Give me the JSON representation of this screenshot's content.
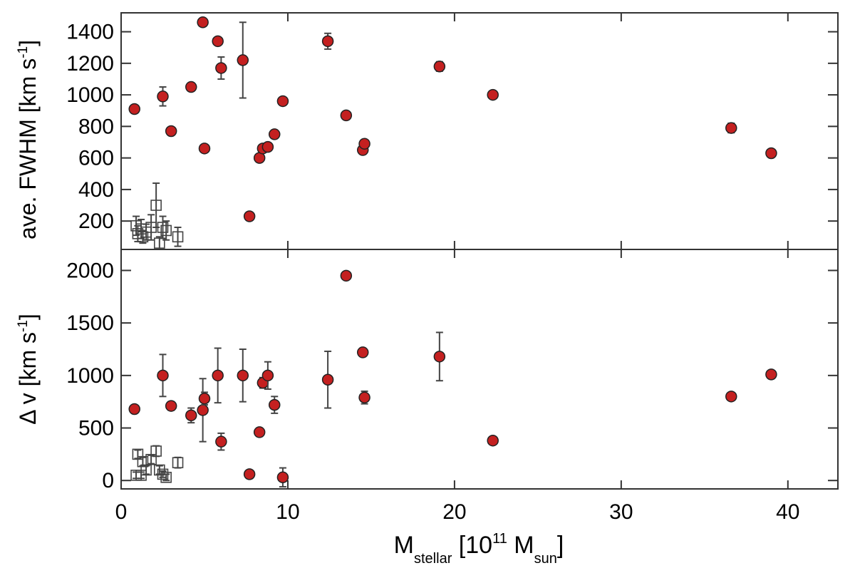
{
  "chart_data": {
    "type": "scatter",
    "x_axis": {
      "label_main": "M",
      "label_sub": "stellar",
      "label_mid": " [10",
      "label_sup": "11",
      "label_main2": " M",
      "label_sub2": "sun",
      "label_end": "]",
      "range": [
        0,
        43
      ],
      "ticks": [
        0,
        10,
        20,
        30,
        40
      ]
    },
    "panels": [
      {
        "id": "fwhm",
        "ylabel_main": "ave. FWHM [km s",
        "ylabel_sup": "-1",
        "ylabel_end": "]",
        "yrange": [
          20,
          1520
        ],
        "yticks": [
          200,
          400,
          600,
          800,
          1000,
          1200,
          1400
        ],
        "series": [
          {
            "marker": "filled-circle",
            "color": "#c42020",
            "points": [
              {
                "x": 0.8,
                "y": 910,
                "err": 0
              },
              {
                "x": 2.5,
                "y": 990,
                "err": 60
              },
              {
                "x": 3.0,
                "y": 770,
                "err": 0
              },
              {
                "x": 4.2,
                "y": 1050,
                "err": 0
              },
              {
                "x": 4.9,
                "y": 1460,
                "err": 0
              },
              {
                "x": 5.0,
                "y": 660,
                "err": 0
              },
              {
                "x": 5.8,
                "y": 1340,
                "err": 0
              },
              {
                "x": 6.0,
                "y": 1170,
                "err": 70
              },
              {
                "x": 7.3,
                "y": 1220,
                "err": 240
              },
              {
                "x": 7.7,
                "y": 230,
                "err": 0
              },
              {
                "x": 8.3,
                "y": 600,
                "err": 0
              },
              {
                "x": 8.5,
                "y": 660,
                "err": 0
              },
              {
                "x": 8.8,
                "y": 670,
                "err": 0
              },
              {
                "x": 9.2,
                "y": 750,
                "err": 0
              },
              {
                "x": 9.7,
                "y": 960,
                "err": 0
              },
              {
                "x": 12.4,
                "y": 1340,
                "err": 50
              },
              {
                "x": 13.5,
                "y": 870,
                "err": 0
              },
              {
                "x": 14.5,
                "y": 650,
                "err": 0
              },
              {
                "x": 14.6,
                "y": 690,
                "err": 0
              },
              {
                "x": 19.1,
                "y": 1180,
                "err": 30
              },
              {
                "x": 22.3,
                "y": 1000,
                "err": 0
              },
              {
                "x": 36.6,
                "y": 790,
                "err": 30
              },
              {
                "x": 39.0,
                "y": 630,
                "err": 0
              }
            ]
          },
          {
            "marker": "open-square",
            "color": "#444444",
            "points": [
              {
                "x": 0.9,
                "y": 170,
                "err": 60
              },
              {
                "x": 1.0,
                "y": 120,
                "err": 50
              },
              {
                "x": 1.2,
                "y": 150,
                "err": 60
              },
              {
                "x": 1.3,
                "y": 100,
                "err": 40
              },
              {
                "x": 1.5,
                "y": 130,
                "err": 50
              },
              {
                "x": 1.8,
                "y": 160,
                "err": 80
              },
              {
                "x": 2.1,
                "y": 300,
                "err": 140
              },
              {
                "x": 2.3,
                "y": 60,
                "err": 40
              },
              {
                "x": 2.5,
                "y": 160,
                "err": 70
              },
              {
                "x": 2.7,
                "y": 140,
                "err": 60
              },
              {
                "x": 3.4,
                "y": 100,
                "err": 60
              }
            ]
          }
        ]
      },
      {
        "id": "dv",
        "ylabel_main": "Δ v [km s",
        "ylabel_sup": "-1",
        "ylabel_end": "]",
        "yrange": [
          -80,
          2200
        ],
        "yticks": [
          0,
          500,
          1000,
          1500,
          2000
        ],
        "series": [
          {
            "marker": "filled-circle",
            "color": "#c42020",
            "points": [
              {
                "x": 0.8,
                "y": 680,
                "err": 0
              },
              {
                "x": 2.5,
                "y": 1000,
                "err": 200
              },
              {
                "x": 3.0,
                "y": 710,
                "err": 40
              },
              {
                "x": 4.2,
                "y": 620,
                "err": 70
              },
              {
                "x": 4.9,
                "y": 670,
                "err": 300
              },
              {
                "x": 5.0,
                "y": 780,
                "err": 60
              },
              {
                "x": 5.8,
                "y": 1000,
                "err": 260
              },
              {
                "x": 6.0,
                "y": 370,
                "err": 80
              },
              {
                "x": 7.3,
                "y": 1000,
                "err": 250
              },
              {
                "x": 7.7,
                "y": 60,
                "err": 0
              },
              {
                "x": 8.3,
                "y": 460,
                "err": 30
              },
              {
                "x": 8.5,
                "y": 930,
                "err": 50
              },
              {
                "x": 8.8,
                "y": 1000,
                "err": 130
              },
              {
                "x": 9.2,
                "y": 720,
                "err": 80
              },
              {
                "x": 9.7,
                "y": 30,
                "err": 90
              },
              {
                "x": 12.4,
                "y": 960,
                "err": 270
              },
              {
                "x": 13.5,
                "y": 1950,
                "err": 0
              },
              {
                "x": 14.5,
                "y": 1220,
                "err": 0
              },
              {
                "x": 14.6,
                "y": 790,
                "err": 60
              },
              {
                "x": 19.1,
                "y": 1180,
                "err": 230
              },
              {
                "x": 22.3,
                "y": 380,
                "err": 0
              },
              {
                "x": 36.6,
                "y": 800,
                "err": 0
              },
              {
                "x": 39.0,
                "y": 1010,
                "err": 0
              }
            ]
          },
          {
            "marker": "open-square",
            "color": "#444444",
            "points": [
              {
                "x": 0.9,
                "y": 50,
                "err": 30
              },
              {
                "x": 1.0,
                "y": 250,
                "err": 40
              },
              {
                "x": 1.2,
                "y": 50,
                "err": 30
              },
              {
                "x": 1.3,
                "y": 180,
                "err": 40
              },
              {
                "x": 1.5,
                "y": 100,
                "err": 40
              },
              {
                "x": 1.8,
                "y": 200,
                "err": 40
              },
              {
                "x": 2.1,
                "y": 280,
                "err": 50
              },
              {
                "x": 2.3,
                "y": 100,
                "err": 40
              },
              {
                "x": 2.5,
                "y": 60,
                "err": 30
              },
              {
                "x": 2.7,
                "y": 30,
                "err": 30
              },
              {
                "x": 3.4,
                "y": 170,
                "err": 50
              }
            ]
          }
        ]
      }
    ]
  }
}
